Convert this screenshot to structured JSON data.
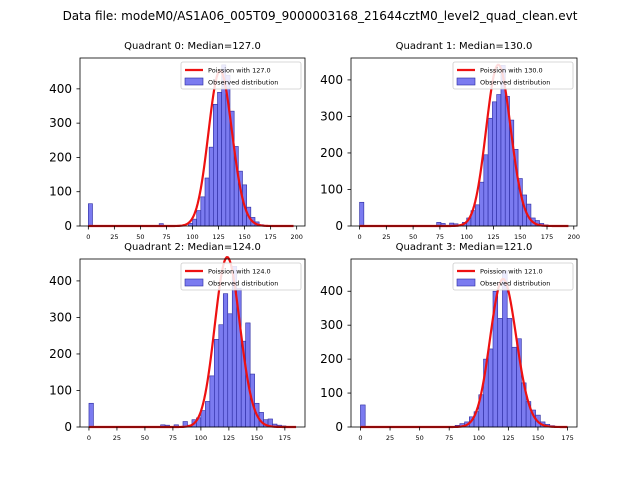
{
  "suptitle": "Data file: modeM0/AS1A06_005T09_9000003168_21644cztM0_level2_quad_clean.evt",
  "colors": {
    "poisson": "#ee1111",
    "hist_fill": "#7b7bf0",
    "hist_edge": "#2a2aa0"
  },
  "legend": {
    "poisson_prefix": "Poission with ",
    "observed": "Observed distribution"
  },
  "chart_data": [
    {
      "type": "bar",
      "title": "Quadrant 0: Median=127.0",
      "median": 127.0,
      "poisson_label": "Poission with 127.0",
      "xlim": [
        -8,
        208
      ],
      "ylim": [
        0,
        490
      ],
      "xticks": [
        0,
        25,
        50,
        75,
        100,
        125,
        150,
        175,
        200
      ],
      "yticks": [
        0,
        100,
        200,
        300,
        400
      ],
      "bin_width": 4,
      "bins": [
        {
          "x": 0,
          "y": 65
        },
        {
          "x": 68,
          "y": 7
        },
        {
          "x": 96,
          "y": 8
        },
        {
          "x": 100,
          "y": 20
        },
        {
          "x": 104,
          "y": 45
        },
        {
          "x": 108,
          "y": 85
        },
        {
          "x": 112,
          "y": 140
        },
        {
          "x": 116,
          "y": 230
        },
        {
          "x": 120,
          "y": 355
        },
        {
          "x": 124,
          "y": 390
        },
        {
          "x": 128,
          "y": 470
        },
        {
          "x": 132,
          "y": 440
        },
        {
          "x": 136,
          "y": 335
        },
        {
          "x": 140,
          "y": 232
        },
        {
          "x": 144,
          "y": 160
        },
        {
          "x": 148,
          "y": 120
        },
        {
          "x": 152,
          "y": 55
        },
        {
          "x": 156,
          "y": 25
        },
        {
          "x": 160,
          "y": 12
        },
        {
          "x": 164,
          "y": 4
        }
      ],
      "poisson_range": [
        0,
        197
      ]
    },
    {
      "type": "bar",
      "title": "Quadrant 1: Median=130.0",
      "median": 130.0,
      "poisson_label": "Poission with 130.0",
      "xlim": [
        -8,
        203
      ],
      "ylim": [
        0,
        460
      ],
      "xticks": [
        0,
        25,
        50,
        75,
        100,
        125,
        150,
        175,
        200
      ],
      "yticks": [
        0,
        100,
        200,
        300,
        400
      ],
      "bin_width": 4,
      "bins": [
        {
          "x": 0,
          "y": 65
        },
        {
          "x": 72,
          "y": 10
        },
        {
          "x": 76,
          "y": 7
        },
        {
          "x": 84,
          "y": 8
        },
        {
          "x": 88,
          "y": 6
        },
        {
          "x": 96,
          "y": 10
        },
        {
          "x": 100,
          "y": 22
        },
        {
          "x": 104,
          "y": 42
        },
        {
          "x": 108,
          "y": 58
        },
        {
          "x": 112,
          "y": 120
        },
        {
          "x": 116,
          "y": 195
        },
        {
          "x": 120,
          "y": 295
        },
        {
          "x": 124,
          "y": 340
        },
        {
          "x": 128,
          "y": 360
        },
        {
          "x": 132,
          "y": 440
        },
        {
          "x": 136,
          "y": 355
        },
        {
          "x": 140,
          "y": 290
        },
        {
          "x": 144,
          "y": 210
        },
        {
          "x": 148,
          "y": 130
        },
        {
          "x": 152,
          "y": 85
        },
        {
          "x": 156,
          "y": 60
        },
        {
          "x": 160,
          "y": 22
        },
        {
          "x": 164,
          "y": 15
        },
        {
          "x": 168,
          "y": 7
        },
        {
          "x": 172,
          "y": 3
        }
      ],
      "poisson_range": [
        0,
        195
      ]
    },
    {
      "type": "bar",
      "title": "Quadrant 2: Median=124.0",
      "median": 124.0,
      "poisson_label": "Poission with 124.0",
      "xlim": [
        -8,
        193
      ],
      "ylim": [
        0,
        460
      ],
      "xticks": [
        0,
        25,
        50,
        75,
        100,
        125,
        150,
        175
      ],
      "yticks": [
        0,
        100,
        200,
        300,
        400
      ],
      "bin_width": 4,
      "bins": [
        {
          "x": 0,
          "y": 65
        },
        {
          "x": 64,
          "y": 6
        },
        {
          "x": 68,
          "y": 5
        },
        {
          "x": 76,
          "y": 6
        },
        {
          "x": 84,
          "y": 15
        },
        {
          "x": 88,
          "y": 5
        },
        {
          "x": 92,
          "y": 20
        },
        {
          "x": 96,
          "y": 25
        },
        {
          "x": 100,
          "y": 45
        },
        {
          "x": 104,
          "y": 70
        },
        {
          "x": 108,
          "y": 140
        },
        {
          "x": 112,
          "y": 240
        },
        {
          "x": 116,
          "y": 280
        },
        {
          "x": 120,
          "y": 365
        },
        {
          "x": 124,
          "y": 310
        },
        {
          "x": 128,
          "y": 440
        },
        {
          "x": 132,
          "y": 380
        },
        {
          "x": 136,
          "y": 235
        },
        {
          "x": 140,
          "y": 285
        },
        {
          "x": 144,
          "y": 145
        },
        {
          "x": 148,
          "y": 65
        },
        {
          "x": 152,
          "y": 40
        },
        {
          "x": 156,
          "y": 20
        },
        {
          "x": 160,
          "y": 22
        },
        {
          "x": 164,
          "y": 8
        },
        {
          "x": 168,
          "y": 5
        },
        {
          "x": 172,
          "y": 3
        }
      ],
      "poisson_range": [
        0,
        185
      ]
    },
    {
      "type": "bar",
      "title": "Quadrant 3: Median=121.0",
      "median": 121.0,
      "poisson_label": "Poission with 121.0",
      "xlim": [
        -8,
        183
      ],
      "ylim": [
        0,
        495
      ],
      "xticks": [
        0,
        25,
        50,
        75,
        100,
        125,
        150,
        175
      ],
      "yticks": [
        0,
        100,
        200,
        300,
        400
      ],
      "bin_width": 4,
      "bins": [
        {
          "x": 0,
          "y": 65
        },
        {
          "x": 80,
          "y": 5
        },
        {
          "x": 84,
          "y": 10
        },
        {
          "x": 88,
          "y": 15
        },
        {
          "x": 92,
          "y": 30
        },
        {
          "x": 96,
          "y": 45
        },
        {
          "x": 100,
          "y": 95
        },
        {
          "x": 104,
          "y": 200
        },
        {
          "x": 108,
          "y": 230
        },
        {
          "x": 112,
          "y": 400
        },
        {
          "x": 116,
          "y": 320
        },
        {
          "x": 120,
          "y": 460
        },
        {
          "x": 124,
          "y": 320
        },
        {
          "x": 128,
          "y": 235
        },
        {
          "x": 132,
          "y": 260
        },
        {
          "x": 136,
          "y": 130
        },
        {
          "x": 140,
          "y": 75
        },
        {
          "x": 144,
          "y": 50
        },
        {
          "x": 148,
          "y": 35
        },
        {
          "x": 152,
          "y": 15
        },
        {
          "x": 156,
          "y": 8
        },
        {
          "x": 160,
          "y": 4
        }
      ],
      "poisson_range": [
        0,
        175
      ]
    }
  ]
}
